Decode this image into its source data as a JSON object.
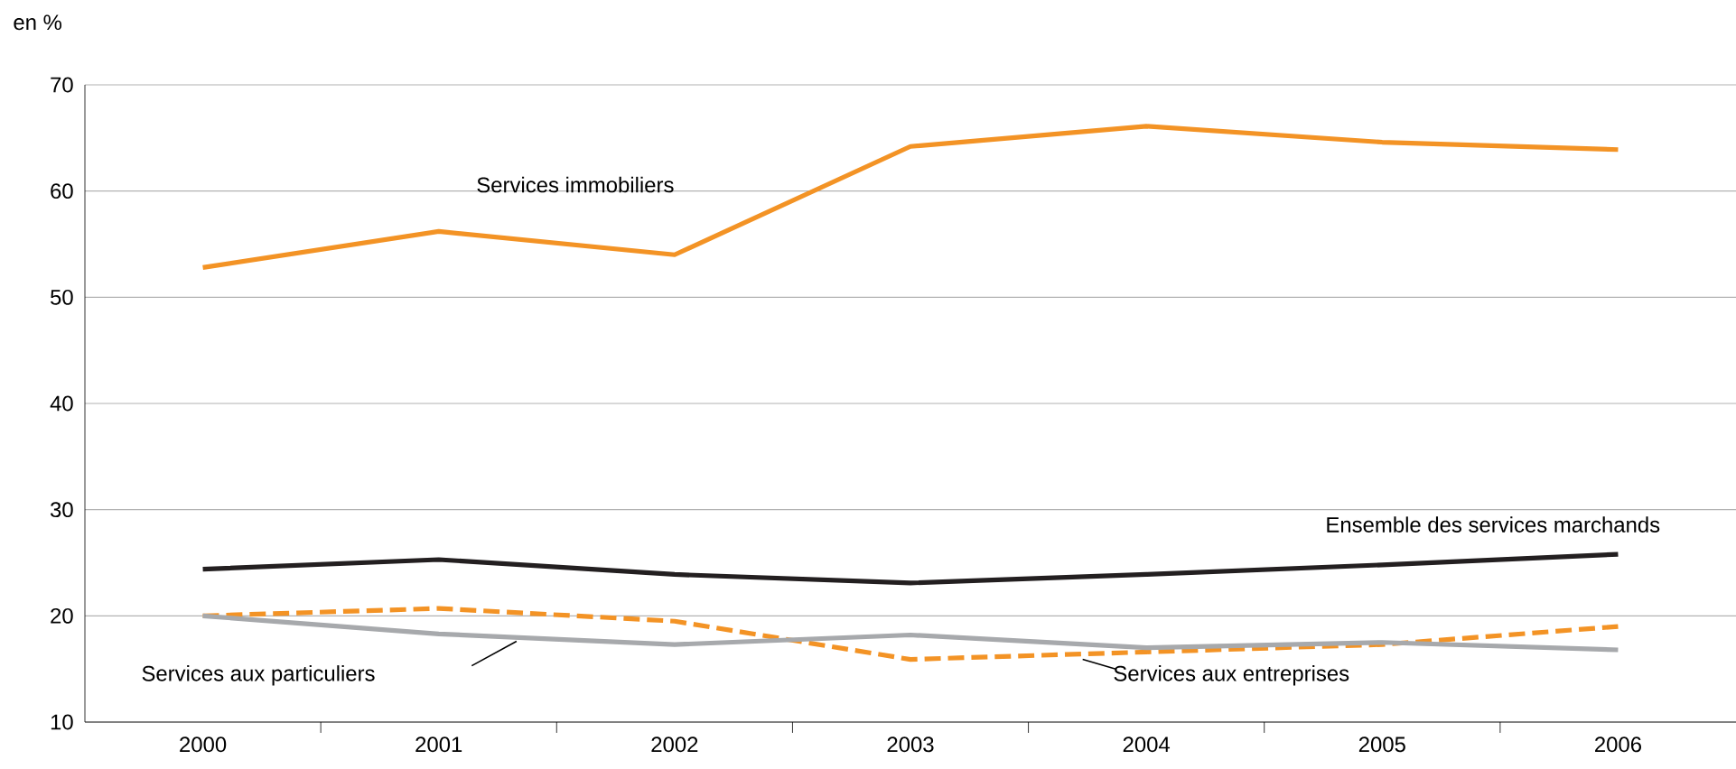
{
  "chart_data": {
    "type": "line",
    "ylabel": "en %",
    "categories": [
      "2000",
      "2001",
      "2002",
      "2003",
      "2004",
      "2005",
      "2006"
    ],
    "series": [
      {
        "name": "Services immobiliers",
        "color": "#f39325",
        "values": [
          52.8,
          56.2,
          54.0,
          64.2,
          66.1,
          64.6,
          63.9
        ]
      },
      {
        "name": "Ensemble des services marchands",
        "color": "#231f20",
        "values": [
          24.4,
          25.3,
          23.9,
          23.1,
          23.9,
          24.8,
          25.8
        ]
      },
      {
        "name": "Services aux entreprises",
        "color": "#f39325",
        "line_style": "dashed",
        "values": [
          20.0,
          20.7,
          19.5,
          15.9,
          16.6,
          17.3,
          19.0
        ]
      },
      {
        "name": "Services aux particuliers",
        "color": "#a7a9ac",
        "values": [
          20.0,
          18.3,
          17.3,
          18.2,
          17.0,
          17.5,
          16.8
        ]
      }
    ],
    "ylim": [
      10,
      70
    ],
    "yticks": [
      10,
      20,
      30,
      40,
      50,
      60,
      70
    ],
    "grid": "y",
    "legend": false,
    "marker": "none",
    "line_style": "solid"
  }
}
